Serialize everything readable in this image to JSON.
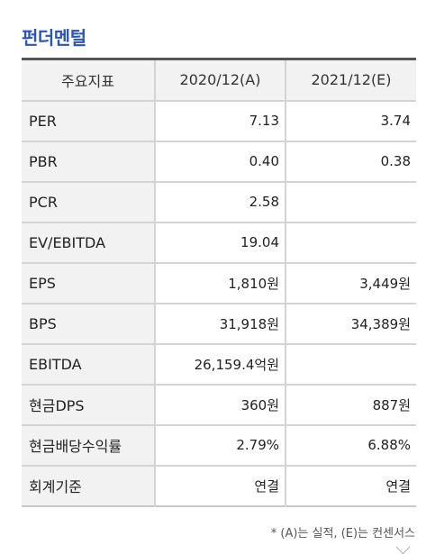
{
  "title": "펀더멘털",
  "header": {
    "metric": "주요지표",
    "col1": "2020/12(A)",
    "col2": "2021/12(E)"
  },
  "rows": [
    {
      "label": "PER",
      "a": "7.13",
      "e": "3.74"
    },
    {
      "label": "PBR",
      "a": "0.40",
      "e": "0.38"
    },
    {
      "label": "PCR",
      "a": "2.58",
      "e": ""
    },
    {
      "label": "EV/EBITDA",
      "a": "19.04",
      "e": ""
    },
    {
      "label": "EPS",
      "a": "1,810원",
      "e": "3,449원"
    },
    {
      "label": "BPS",
      "a": "31,918원",
      "e": "34,389원"
    },
    {
      "label": "EBITDA",
      "a": "26,159.4억원",
      "e": ""
    },
    {
      "label": "현금DPS",
      "a": "360원",
      "e": "887원"
    },
    {
      "label": "현금배당수익률",
      "a": "2.79%",
      "e": "6.88%"
    },
    {
      "label": "회계기준",
      "a": "연결",
      "e": "연결"
    }
  ],
  "footnote": "* (A)는 실적, (E)는 컨센서스",
  "icons": {
    "scroll": "chevron-down-icon"
  },
  "colors": {
    "title": "#2a55b5"
  }
}
